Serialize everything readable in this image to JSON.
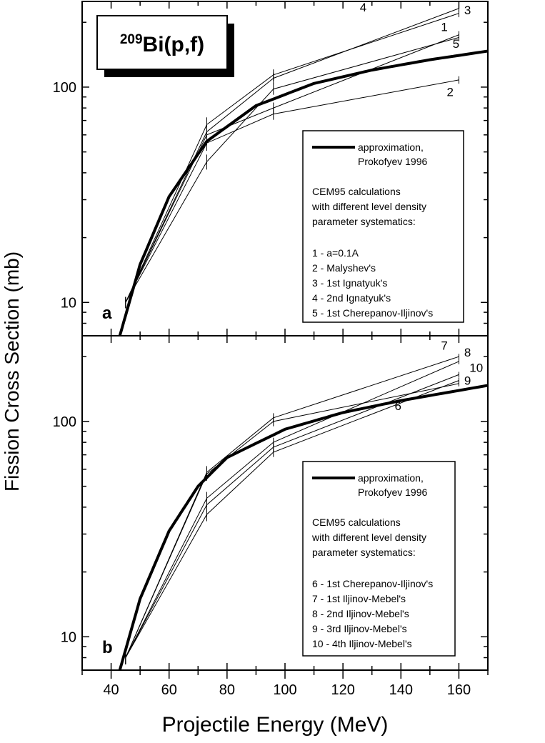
{
  "figure": {
    "ylabel": "Fission Cross Section (mb)",
    "xlabel": "Projectile Energy (MeV)",
    "x_ticks": [
      40,
      60,
      80,
      100,
      120,
      140,
      160
    ],
    "x_tick_labels": [
      "40",
      "60",
      "80",
      "100",
      "120",
      "140",
      "160"
    ],
    "xlim": [
      30,
      170
    ]
  },
  "reaction": {
    "mass": "209",
    "rest": "Bi(p,f)"
  },
  "chart_data": [
    {
      "type": "line",
      "panel": "a",
      "panel_label": "a",
      "yscale": "log",
      "ylim": [
        7,
        250
      ],
      "y_tick_labels": [
        {
          "value": 10,
          "label": "10"
        },
        {
          "value": 100,
          "label": "100"
        }
      ],
      "approximation": {
        "label": "Prokofyev 1996",
        "x": [
          43,
          50,
          60,
          73,
          90,
          110,
          130,
          150,
          170
        ],
        "y": [
          7,
          15,
          31,
          56,
          82,
          104,
          120,
          134,
          147
        ]
      },
      "series": [
        {
          "name": "1",
          "x": [
            45,
            73,
            96,
            160
          ],
          "y": [
            10,
            60,
            80,
            175
          ],
          "err": [
            0.06,
            0.08,
            0.06,
            0.04
          ]
        },
        {
          "name": "2",
          "x": [
            45,
            73,
            96,
            160
          ],
          "y": [
            10,
            55,
            75,
            108
          ],
          "err": [
            0.06,
            0.08,
            0.06,
            0.04
          ]
        },
        {
          "name": "3",
          "x": [
            45,
            73,
            96,
            160
          ],
          "y": [
            10,
            67,
            114,
            220
          ],
          "err": [
            0.06,
            0.08,
            0.06,
            0.04
          ]
        },
        {
          "name": "4",
          "x": [
            45,
            73,
            96,
            160
          ],
          "y": [
            10,
            62,
            110,
            232
          ],
          "err": [
            0.06,
            0.08,
            0.06,
            0.04
          ]
        },
        {
          "name": "5",
          "x": [
            45,
            73,
            96,
            160
          ],
          "y": [
            10,
            45,
            98,
            170
          ],
          "err": [
            0.06,
            0.08,
            0.06,
            0.04
          ]
        }
      ],
      "series_labels": [
        {
          "text": "4",
          "x": 127,
          "y": 225
        },
        {
          "text": "3",
          "x": 163,
          "y": 218
        },
        {
          "text": "1",
          "x": 155,
          "y": 182
        },
        {
          "text": "5",
          "x": 159,
          "y": 152
        },
        {
          "text": "2",
          "x": 157,
          "y": 91
        }
      ],
      "legend": {
        "approx_line1": "approximation,",
        "approx_line2": "Prokofyev 1996",
        "lines": [
          "CEM95 calculations",
          "with different level density",
          "parameter systematics:"
        ],
        "items": [
          "1 - a=0.1A",
          "2 - Malyshev's",
          "3 - 1st Ignatyuk's",
          "4 - 2nd Ignatyuk's",
          "5 - 1st Cherepanov-Iljinov's"
        ]
      }
    },
    {
      "type": "line",
      "panel": "b",
      "panel_label": "b",
      "yscale": "log",
      "ylim": [
        7,
        250
      ],
      "y_tick_labels": [
        {
          "value": 10,
          "label": "10"
        },
        {
          "value": 100,
          "label": "100"
        }
      ],
      "approximation": {
        "label": "Prokofyev 1996",
        "x": [
          43,
          50,
          60,
          70,
          80,
          100,
          120,
          140,
          170
        ],
        "y": [
          7,
          15,
          31,
          50,
          68,
          92,
          110,
          125,
          147
        ]
      },
      "series": [
        {
          "name": "6",
          "x": [
            45,
            73,
            96,
            160
          ],
          "y": [
            8,
            57,
            100,
            150
          ],
          "err": [
            0.07,
            0.07,
            0.05,
            0.03
          ]
        },
        {
          "name": "7",
          "x": [
            45,
            73,
            96,
            160
          ],
          "y": [
            8,
            58,
            104,
            200
          ],
          "err": [
            0.07,
            0.07,
            0.05,
            0.03
          ]
        },
        {
          "name": "8",
          "x": [
            45,
            73,
            96,
            160
          ],
          "y": [
            8,
            44,
            80,
            190
          ],
          "err": [
            0.07,
            0.07,
            0.05,
            0.03
          ]
        },
        {
          "name": "9",
          "x": [
            45,
            73,
            96,
            160
          ],
          "y": [
            8,
            37,
            72,
            155
          ],
          "err": [
            0.07,
            0.07,
            0.05,
            0.03
          ]
        },
        {
          "name": "10",
          "x": [
            45,
            73,
            96,
            160
          ],
          "y": [
            8,
            41,
            76,
            165
          ],
          "err": [
            0.07,
            0.07,
            0.05,
            0.03
          ]
        }
      ],
      "series_labels": [
        {
          "text": "7",
          "x": 155,
          "y": 215
        },
        {
          "text": "8",
          "x": 163,
          "y": 200
        },
        {
          "text": "10",
          "x": 166,
          "y": 170
        },
        {
          "text": "9",
          "x": 163,
          "y": 148
        },
        {
          "text": "6",
          "x": 139,
          "y": 113
        }
      ],
      "legend": {
        "approx_line1": "approximation,",
        "approx_line2": "Prokofyev 1996",
        "lines": [
          "CEM95 calculations",
          "with different level density",
          "parameter systematics:"
        ],
        "items": [
          "6 - 1st Cherepanov-Iljinov's",
          "7 - 1st Iljinov-Mebel's",
          "8 - 2nd Iljinov-Mebel's",
          "9 - 3rd Iljinov-Mebel's",
          "10 - 4th Iljinov-Mebel's"
        ]
      }
    }
  ]
}
